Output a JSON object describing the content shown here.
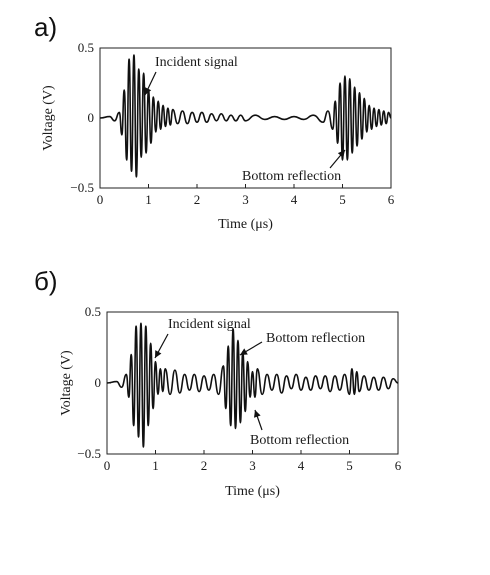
{
  "panels": [
    {
      "letter": "а)"
    },
    {
      "letter": "б)"
    }
  ],
  "chart_data": [
    {
      "type": "line",
      "xlabel": "Time (μs)",
      "ylabel": "Voltage (V)",
      "xlim": [
        0,
        6
      ],
      "ylim": [
        -0.5,
        0.5
      ],
      "x_ticks": [
        "0",
        "1",
        "2",
        "3",
        "4",
        "5",
        "6"
      ],
      "y_ticks": [
        "0.5",
        "0",
        "−0.5"
      ],
      "grid": false,
      "series": [
        {
          "x": [
            0,
            0.2,
            0.3,
            0.4,
            0.45,
            0.5,
            0.55,
            0.6,
            0.65,
            0.7,
            0.75,
            0.8,
            0.85,
            0.9,
            0.95,
            1.0,
            1.05,
            1.1,
            1.15,
            1.2,
            1.25,
            1.3,
            1.35,
            1.4,
            1.45,
            1.5,
            1.6,
            1.7,
            1.8,
            1.9,
            2.0,
            2.1,
            2.2,
            2.3,
            2.4,
            2.5,
            2.6,
            2.7,
            2.8,
            2.9,
            3.0,
            3.2,
            3.4,
            3.6,
            3.8,
            4.0,
            4.2,
            4.4,
            4.6,
            4.7,
            4.8,
            4.85,
            4.9,
            4.95,
            5.0,
            5.05,
            5.1,
            5.15,
            5.2,
            5.25,
            5.3,
            5.35,
            5.4,
            5.45,
            5.5,
            5.55,
            5.6,
            5.65,
            5.7,
            5.75,
            5.8,
            5.85,
            5.9,
            5.95,
            6.0
          ],
          "y": [
            0,
            0.01,
            -0.02,
            0.04,
            -0.12,
            0.2,
            -0.3,
            0.42,
            -0.38,
            0.45,
            -0.42,
            0.35,
            -0.28,
            0.32,
            -0.25,
            0.2,
            -0.18,
            0.15,
            -0.1,
            0.12,
            -0.08,
            0.09,
            -0.06,
            0.07,
            -0.05,
            0.06,
            -0.04,
            0.05,
            -0.04,
            0.04,
            -0.03,
            0.04,
            -0.03,
            0.03,
            -0.02,
            0.03,
            -0.02,
            0.02,
            -0.02,
            0.02,
            -0.02,
            0.02,
            -0.01,
            0.01,
            -0.01,
            0.01,
            -0.01,
            0.02,
            -0.03,
            0.05,
            -0.08,
            0.12,
            -0.18,
            0.25,
            -0.3,
            0.3,
            -0.3,
            0.28,
            -0.25,
            0.22,
            -0.2,
            0.18,
            -0.15,
            0.14,
            -0.1,
            0.09,
            -0.08,
            0.07,
            -0.06,
            0.06,
            -0.05,
            0.05,
            -0.04,
            0.04,
            0
          ]
        }
      ],
      "annotations": [
        {
          "text": "Incident signal",
          "x": 1.15,
          "y": 0.42
        },
        {
          "text": "Bottom reflection",
          "x": 2.9,
          "y": -0.39
        }
      ]
    },
    {
      "type": "line",
      "xlabel": "Time (μs)",
      "ylabel": "Voltage (V)",
      "xlim": [
        0,
        6
      ],
      "ylim": [
        -0.5,
        0.5
      ],
      "x_ticks": [
        "0",
        "1",
        "2",
        "3",
        "4",
        "5",
        "6"
      ],
      "y_ticks": [
        "0.5",
        "0",
        "−0.5"
      ],
      "grid": false,
      "series": [
        {
          "x": [
            0,
            0.2,
            0.3,
            0.4,
            0.45,
            0.5,
            0.55,
            0.6,
            0.65,
            0.7,
            0.75,
            0.8,
            0.85,
            0.9,
            0.95,
            1.0,
            1.05,
            1.1,
            1.15,
            1.2,
            1.3,
            1.4,
            1.5,
            1.6,
            1.7,
            1.8,
            1.9,
            2.0,
            2.1,
            2.2,
            2.3,
            2.4,
            2.45,
            2.5,
            2.55,
            2.6,
            2.65,
            2.7,
            2.75,
            2.8,
            2.85,
            2.9,
            2.95,
            3.0,
            3.05,
            3.1,
            3.2,
            3.3,
            3.4,
            3.5,
            3.6,
            3.7,
            3.8,
            3.9,
            4.0,
            4.1,
            4.2,
            4.3,
            4.4,
            4.5,
            4.6,
            4.7,
            4.8,
            4.9,
            5.0,
            5.05,
            5.1,
            5.15,
            5.2,
            5.3,
            5.4,
            5.5,
            5.6,
            5.7,
            5.8,
            5.9,
            6.0
          ],
          "y": [
            0,
            0.01,
            -0.03,
            0.06,
            -0.1,
            0.2,
            -0.3,
            0.4,
            -0.38,
            0.42,
            -0.45,
            0.4,
            -0.3,
            0.28,
            -0.18,
            0.15,
            -0.08,
            0.1,
            -0.06,
            0.1,
            -0.08,
            0.09,
            -0.07,
            0.06,
            -0.05,
            0.06,
            -0.06,
            0.05,
            -0.05,
            0.06,
            -0.08,
            0.12,
            -0.18,
            0.26,
            -0.3,
            0.38,
            -0.32,
            0.3,
            -0.28,
            0.22,
            -0.2,
            0.15,
            -0.1,
            0.08,
            -0.1,
            0.1,
            -0.08,
            0.06,
            -0.05,
            0.06,
            -0.07,
            0.05,
            -0.04,
            0.06,
            -0.05,
            0.04,
            -0.05,
            0.05,
            -0.04,
            0.05,
            -0.06,
            0.05,
            -0.05,
            0.06,
            -0.08,
            0.1,
            -0.08,
            0.08,
            -0.06,
            0.05,
            -0.05,
            0.04,
            -0.05,
            0.04,
            -0.04,
            0.03,
            0
          ]
        }
      ],
      "annotations": [
        {
          "text": "Incident signal",
          "x": 1.25,
          "y": 0.42
        },
        {
          "text": "Bottom reflection",
          "x": 3.3,
          "y": 0.3
        },
        {
          "text": "Bottom reflection",
          "x": 3.0,
          "y": -0.4
        }
      ]
    }
  ]
}
